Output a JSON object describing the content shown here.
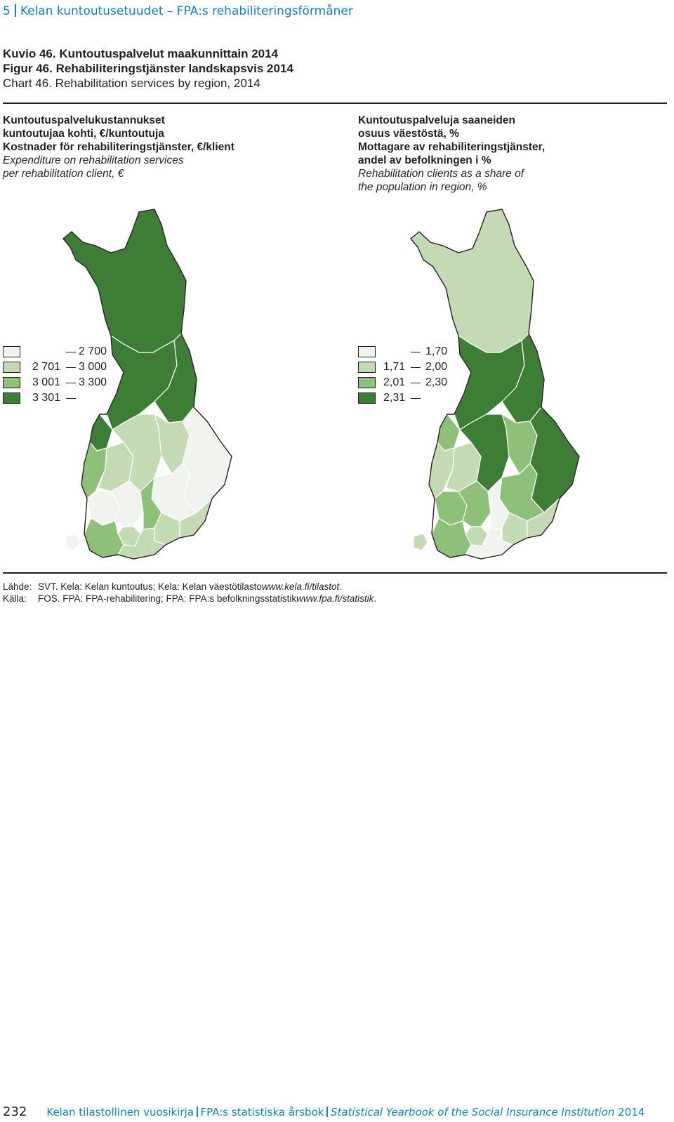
{
  "header": {
    "chapter": "5",
    "title": "Kelan kuntoutusetuudet – FPA:s rehabiliteringsförmåner"
  },
  "titles": [
    {
      "label": "Kuvio 46.",
      "text": "Kuntoutuspalvelut maakunnittain 2014"
    },
    {
      "label": "Figur  46.",
      "text": "Rehabiliteringstjänster landskapsvis 2014"
    },
    {
      "label": "Chart  46.",
      "text": "Rehabilitation services by region, 2014"
    }
  ],
  "left_panel": {
    "line1": "Kuntoutuspalvelukustannukset",
    "line2": "kuntoutujaa kohti, €/kuntoutuja",
    "line3": "Kostnader för rehabiliteringstjänster, €/klient",
    "line4": "Expenditure on rehabilitation services",
    "line5": "per rehabilitation client, €",
    "legend": [
      {
        "low": "",
        "high": "2 700",
        "color": "#f1f3ee"
      },
      {
        "low": "2 701",
        "high": "3 000",
        "color": "#c3dab5"
      },
      {
        "low": "3 001",
        "high": "3 300",
        "color": "#8fc07a"
      },
      {
        "low": "3 301",
        "high": "",
        "color": "#3e7d36"
      }
    ]
  },
  "right_panel": {
    "line1": "Kuntoutuspalveluja saaneiden",
    "line2": "osuus väestöstä, %",
    "line3": "Mottagare av rehabiliteringstjänster,",
    "line4": "andel av befolkningen i %",
    "line5": "Rehabilitation clients as a share of",
    "line6": "the population in region, %",
    "legend": [
      {
        "low": "",
        "high": "1,70",
        "color": "#f1f3ee"
      },
      {
        "low": "1,71",
        "high": "2,00",
        "color": "#c3dab5"
      },
      {
        "low": "2,01",
        "high": "2,30",
        "color": "#8fc07a"
      },
      {
        "low": "2,31",
        "high": "",
        "color": "#3e7d36"
      }
    ]
  },
  "sources": [
    {
      "label": "Lähde:",
      "text": "SVT. Kela: Kelan kuntoutus; Kela: Kelan väestötilasto ",
      "link": "www.kela.fi/tilastot",
      "end": "."
    },
    {
      "label": "Källa:",
      "text": "FOS. FPA: FPA-rehabilitering; FPA: FPA:s befolkningsstatistik ",
      "link": "www.fpa.fi/statistik",
      "end": "."
    }
  ],
  "footer": {
    "page": "232",
    "part1": "Kelan tilastollinen vuosikirja",
    "part2": "FPA:s statistiska årsbok",
    "part3": "Statistical Yearbook of the Social Insurance Institution",
    "year": "2014"
  },
  "map_region_classes": {
    "left": {
      "lapland": 3,
      "north_ostrobothnia": 3,
      "kainuu": 3,
      "central_ostrobothnia": 3,
      "ostrobothnia": 2,
      "south_ostrobothnia": 1,
      "central_finland": 1,
      "north_savo": 1,
      "north_karelia": 0,
      "satakunta": 0,
      "pirkanmaa": 0,
      "south_savo": 0,
      "kanta_hame": 1,
      "paijat_hame": 2,
      "kymenlaakso": 1,
      "south_karelia": 1,
      "southwest_finland": 2,
      "uusimaa": 1,
      "aland": 0
    },
    "right": {
      "lapland": 1,
      "north_ostrobothnia": 3,
      "kainuu": 3,
      "central_ostrobothnia": 2,
      "ostrobothnia": 1,
      "south_ostrobothnia": 1,
      "central_finland": 3,
      "north_savo": 2,
      "north_karelia": 3,
      "satakunta": 2,
      "pirkanmaa": 2,
      "south_savo": 2,
      "kanta_hame": 1,
      "paijat_hame": 0,
      "kymenlaakso": 1,
      "south_karelia": 1,
      "southwest_finland": 2,
      "uusimaa": 0,
      "aland": 1
    }
  }
}
